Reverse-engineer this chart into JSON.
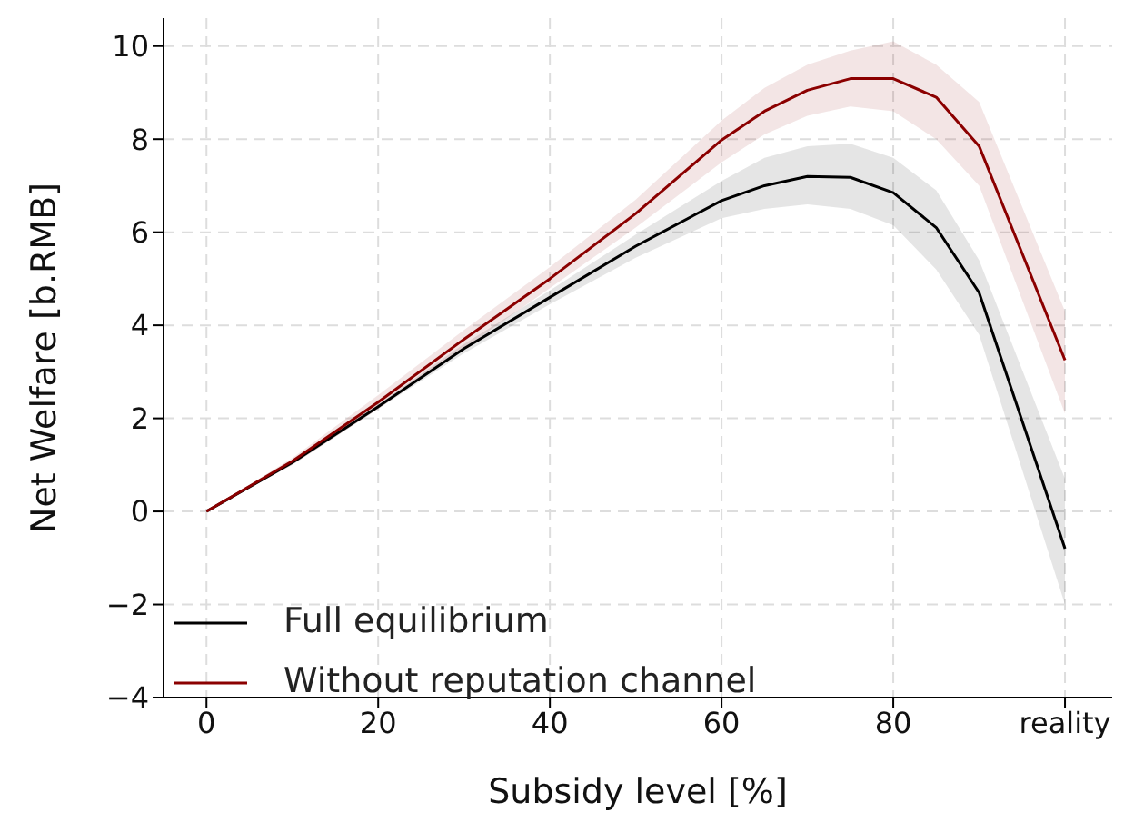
{
  "chart_data": {
    "type": "line",
    "xlabel": "Subsidy level [%]",
    "ylabel": "Net Welfare [b.RMB]",
    "x": [
      0,
      10,
      20,
      30,
      40,
      50,
      60,
      65,
      70,
      75,
      80,
      85,
      90,
      100
    ],
    "series": [
      {
        "name": "Full equilibrium",
        "color": "#000000",
        "values": [
          0,
          1.05,
          2.25,
          3.5,
          4.6,
          5.7,
          6.68,
          7.0,
          7.2,
          7.18,
          6.85,
          6.1,
          4.7,
          -0.8
        ],
        "lower": [
          0,
          1.0,
          2.2,
          3.4,
          4.45,
          5.45,
          6.3,
          6.5,
          6.6,
          6.5,
          6.15,
          5.2,
          3.8,
          -2.0
        ],
        "upper": [
          0,
          1.1,
          2.3,
          3.6,
          4.75,
          5.95,
          7.1,
          7.6,
          7.85,
          7.9,
          7.6,
          6.9,
          5.4,
          0.7
        ]
      },
      {
        "name": "Without reputation channel",
        "color": "#8b0000",
        "values": [
          0,
          1.08,
          2.35,
          3.7,
          5.0,
          6.4,
          7.98,
          8.6,
          9.05,
          9.3,
          9.3,
          8.9,
          7.85,
          3.25
        ],
        "lower": [
          0,
          1.0,
          2.2,
          3.5,
          4.8,
          6.1,
          7.5,
          8.1,
          8.5,
          8.7,
          8.6,
          8.0,
          7.0,
          2.1
        ],
        "upper": [
          0,
          1.15,
          2.5,
          3.9,
          5.25,
          6.7,
          8.4,
          9.1,
          9.6,
          9.9,
          10.1,
          9.6,
          8.8,
          4.3
        ]
      }
    ],
    "xlim": [
      -5,
      105.5
    ],
    "ylim": [
      -4,
      10.6
    ],
    "xticks": [
      0,
      20,
      40,
      60,
      80,
      {
        "value": 100,
        "label": "reality"
      }
    ],
    "yticks": [
      -4,
      -2,
      0,
      2,
      4,
      6,
      8,
      10
    ],
    "grid": true,
    "legend": "bottom left",
    "marker": "none",
    "line_style": "solid"
  }
}
